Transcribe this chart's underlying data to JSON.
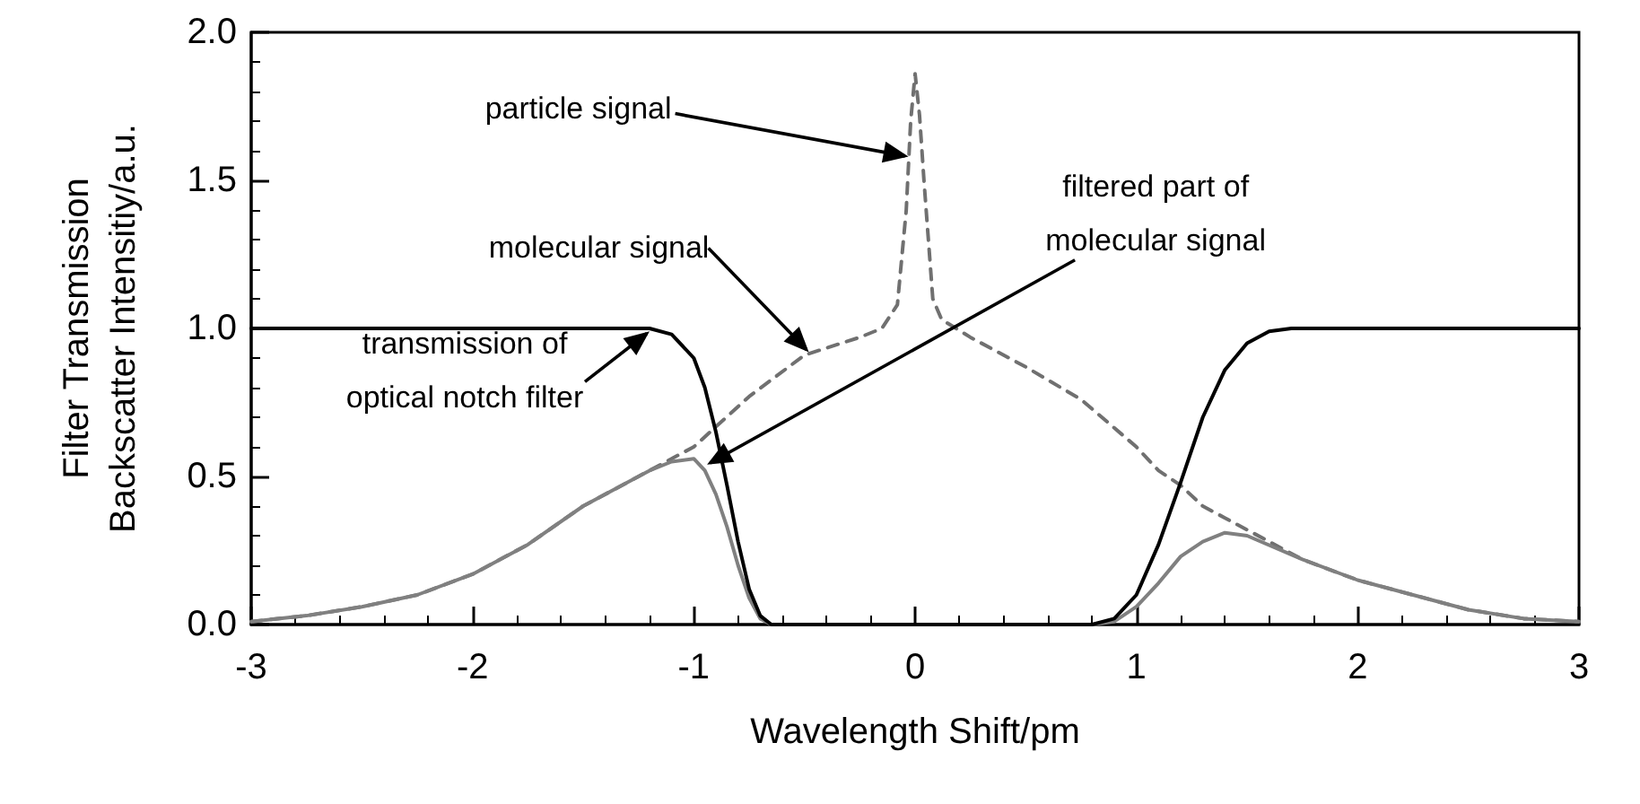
{
  "chart_data": {
    "type": "line",
    "xlabel": "Wavelength Shift/pm",
    "ylabel": "Filter Transmission\nBackscatter Intensitiy/a.u.",
    "xlim": [
      -3,
      3
    ],
    "xticks": [
      -3,
      -2,
      -1,
      0,
      1,
      2,
      3
    ],
    "ylim": [
      0,
      2
    ],
    "yticks": [
      {
        "value": 0,
        "label": "0.0"
      },
      {
        "value": 0.5,
        "label": "0.5"
      },
      {
        "value": 1,
        "label": "1.0"
      },
      {
        "value": 1.5,
        "label": "1.5"
      },
      {
        "value": 2,
        "label": "2.0"
      }
    ],
    "grid": false,
    "marker": "none",
    "series": [
      {
        "color": "#707070",
        "line_style": "dashed",
        "x": [
          -3,
          -2.75,
          -2.5,
          -2.25,
          -2,
          -1.75,
          -1.5,
          -1.25,
          -1,
          -0.75,
          -0.5,
          -0.25,
          -0.15,
          -0.08,
          -0.04,
          -0.02,
          0,
          0.02,
          0.04,
          0.08,
          0.12,
          0.25,
          0.5,
          0.75,
          1,
          1.1,
          1.2,
          1.3,
          1.4,
          1.5,
          1.75,
          2,
          2.25,
          2.5,
          2.75,
          3
        ],
        "values": [
          0.01,
          0.03,
          0.06,
          0.1,
          0.17,
          0.27,
          0.4,
          0.5,
          0.6,
          0.77,
          0.91,
          0.97,
          1.0,
          1.08,
          1.4,
          1.7,
          1.86,
          1.72,
          1.5,
          1.1,
          1.03,
          0.97,
          0.87,
          0.76,
          0.6,
          0.52,
          0.47,
          0.4,
          0.36,
          0.32,
          0.22,
          0.15,
          0.1,
          0.05,
          0.02,
          0.01
        ]
      },
      {
        "color": "#808080",
        "line_style": "solid",
        "x": [
          -3,
          -2.75,
          -2.5,
          -2.25,
          -2,
          -1.75,
          -1.5,
          -1.25,
          -1.2,
          -1.1,
          -1,
          -0.95,
          -0.9,
          -0.85,
          -0.8,
          -0.75,
          -0.7,
          -0.65,
          0.8,
          0.9,
          1,
          1.1,
          1.2,
          1.3,
          1.4,
          1.5,
          1.75,
          2,
          2.25,
          2.5,
          2.75,
          3
        ],
        "values": [
          0.01,
          0.03,
          0.06,
          0.1,
          0.17,
          0.27,
          0.4,
          0.5,
          0.52,
          0.55,
          0.56,
          0.52,
          0.44,
          0.33,
          0.2,
          0.09,
          0.02,
          0,
          0,
          0.01,
          0.06,
          0.14,
          0.23,
          0.28,
          0.31,
          0.3,
          0.22,
          0.15,
          0.1,
          0.05,
          0.02,
          0.01
        ]
      },
      {
        "color": "#000000",
        "line_style": "solid",
        "x": [
          -3,
          -1.3,
          -1.2,
          -1.1,
          -1,
          -0.95,
          -0.9,
          -0.85,
          -0.8,
          -0.75,
          -0.7,
          -0.65,
          0.8,
          0.9,
          1,
          1.1,
          1.2,
          1.3,
          1.4,
          1.5,
          1.6,
          1.7,
          3
        ],
        "values": [
          1,
          1,
          1,
          0.98,
          0.9,
          0.8,
          0.65,
          0.47,
          0.28,
          0.12,
          0.03,
          0,
          0,
          0.02,
          0.1,
          0.27,
          0.48,
          0.7,
          0.86,
          0.95,
          0.99,
          1,
          1
        ]
      }
    ],
    "annotations": [
      {
        "text": "particle signal",
        "x": -0.03,
        "y": 1.58
      },
      {
        "text": "molecular signal",
        "x": -0.48,
        "y": 0.92
      },
      {
        "text": "transmission of\noptical notch filter",
        "x": -1.2,
        "y": 0.99
      },
      {
        "text": "filtered part of\nmolecular signal",
        "x": -0.94,
        "y": 0.54
      }
    ]
  }
}
